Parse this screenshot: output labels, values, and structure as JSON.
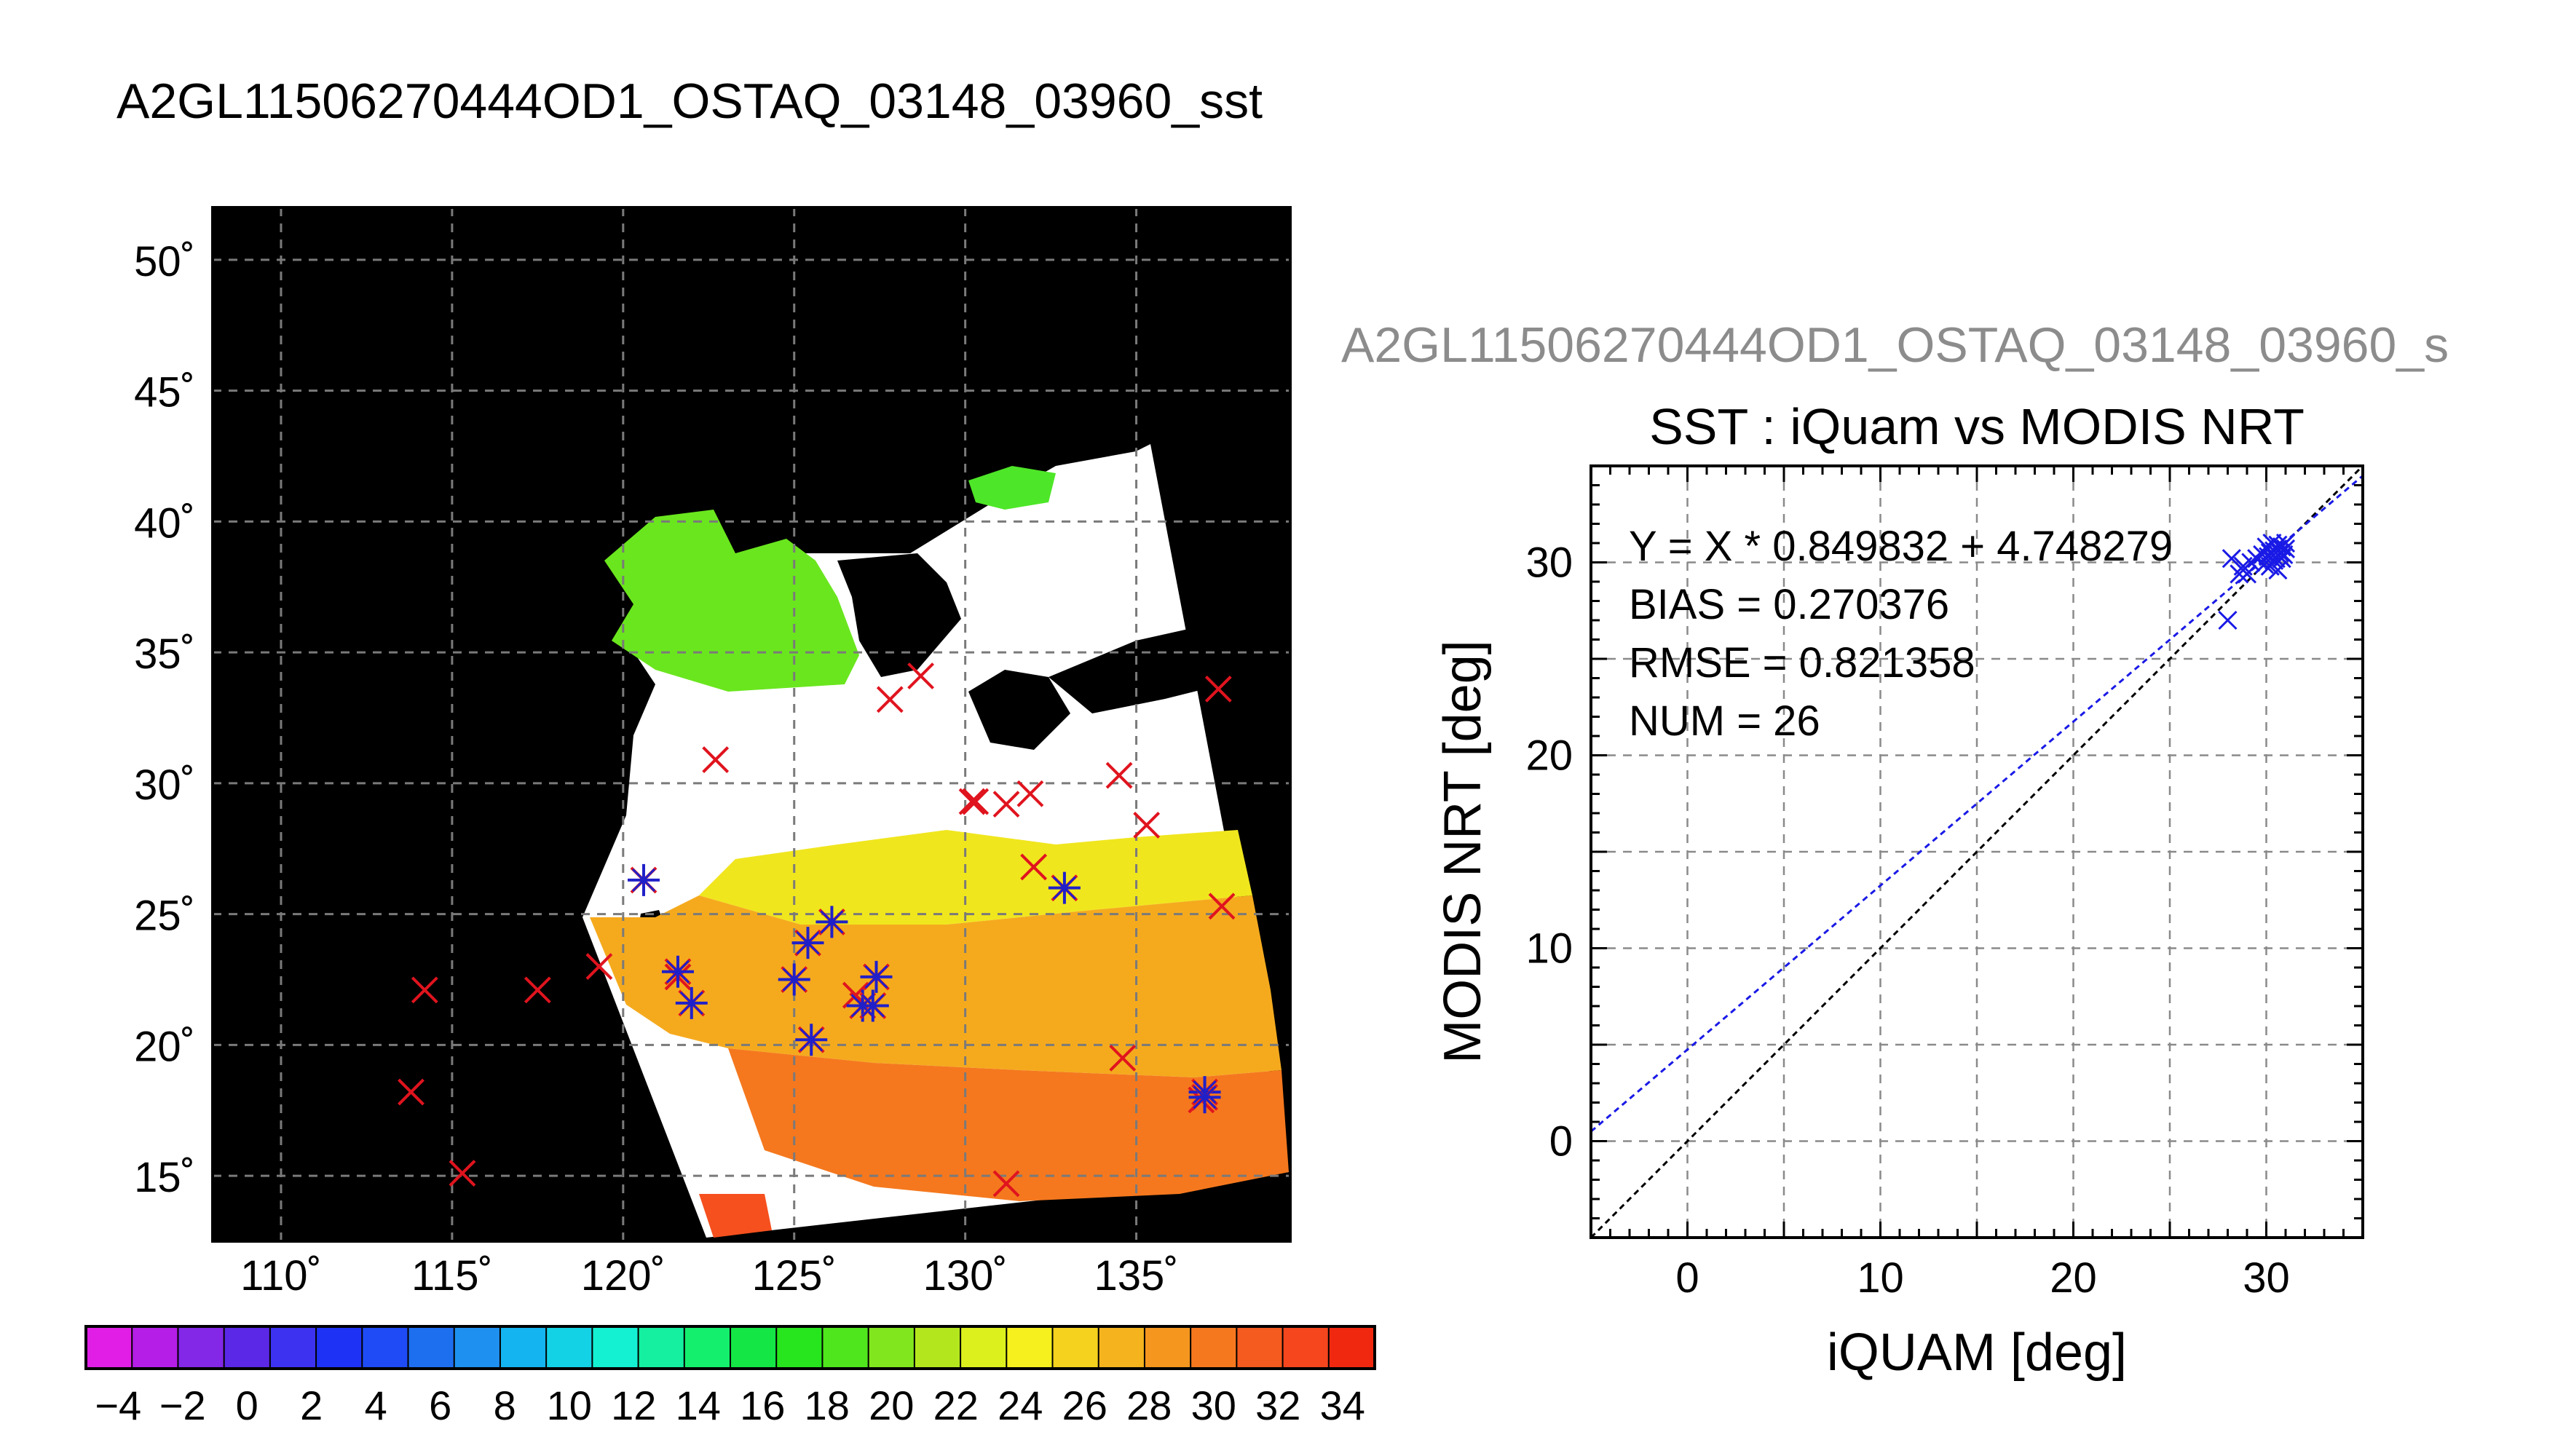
{
  "page": {
    "title": "A2GL11506270444OD1_OSTAQ_03148_03960_sst"
  },
  "map": {
    "lat_ticks": [
      "50˚",
      "45˚",
      "40˚",
      "35˚",
      "30˚",
      "25˚",
      "20˚",
      "15˚"
    ],
    "lon_ticks": [
      "110˚",
      "115˚",
      "120˚",
      "125˚",
      "130˚",
      "135˚"
    ],
    "lon_range": [
      108,
      139.5
    ],
    "lat_range": [
      12.5,
      52
    ],
    "colors": {
      "background": "#000000",
      "cloud": "#ffffff",
      "marker_iquam": "#e0141e",
      "marker_matched": "#2020c8"
    },
    "iquam_points": [
      [
        114.2,
        22.1
      ],
      [
        117.5,
        22.1
      ],
      [
        113.8,
        18.2
      ],
      [
        115.3,
        15.1
      ],
      [
        119.3,
        23.0
      ],
      [
        122.7,
        30.9
      ],
      [
        127.8,
        33.2
      ],
      [
        128.7,
        34.1
      ],
      [
        130.2,
        29.3
      ],
      [
        130.3,
        29.3
      ],
      [
        131.2,
        29.2
      ],
      [
        131.9,
        29.6
      ],
      [
        132.0,
        26.8
      ],
      [
        134.5,
        30.3
      ],
      [
        135.3,
        28.4
      ],
      [
        137.4,
        33.6
      ],
      [
        137.5,
        25.3
      ],
      [
        134.6,
        19.5
      ],
      [
        131.2,
        14.7
      ],
      [
        126.8,
        21.9
      ],
      [
        121.6,
        22.6
      ],
      [
        136.9,
        17.9
      ]
    ],
    "matched_points": [
      [
        120.6,
        26.3
      ],
      [
        121.6,
        22.8
      ],
      [
        122.0,
        21.6
      ],
      [
        125.0,
        22.5
      ],
      [
        125.4,
        23.9
      ],
      [
        125.5,
        20.2
      ],
      [
        126.1,
        24.7
      ],
      [
        127.0,
        21.5
      ],
      [
        127.3,
        21.5
      ],
      [
        127.4,
        22.6
      ],
      [
        132.9,
        26.0
      ],
      [
        137.0,
        18.2
      ],
      [
        137.0,
        18.0
      ]
    ]
  },
  "colorbar": {
    "tick_labels": [
      "−4",
      "−2",
      "0",
      "2",
      "4",
      "6",
      "8",
      "10",
      "12",
      "14",
      "16",
      "18",
      "20",
      "22",
      "24",
      "26",
      "28",
      "30",
      "32",
      "34"
    ],
    "range": [
      -5,
      35
    ],
    "colors": [
      "#e01ee6",
      "#b41ee6",
      "#8228e6",
      "#5a28e6",
      "#3c32f0",
      "#1e32f5",
      "#1e4bf5",
      "#1e6ef0",
      "#1e91f0",
      "#14b4f0",
      "#14d2e6",
      "#14f0d2",
      "#14f0a0",
      "#14f06e",
      "#14e646",
      "#28e61e",
      "#50e61e",
      "#82e61e",
      "#b4e61e",
      "#dcf01e",
      "#f5f01e",
      "#f5d21e",
      "#f5b41e",
      "#f5961e",
      "#f5781e",
      "#f55a1e",
      "#f5461e",
      "#f0280f"
    ]
  },
  "scatter": {
    "subtitle": "A2GL11506270444OD1_OSTAQ_03148_03960_s",
    "title": "SST : iQuam vs MODIS NRT",
    "xlabel": "iQUAM [deg]",
    "ylabel": "MODIS NRT [deg]",
    "stats": {
      "fit": "Y = X * 0.849832 + 4.748279",
      "bias": "BIAS = 0.270376",
      "rmse": "RMSE = 0.821358",
      "num": "NUM = 26"
    },
    "x_ticks": [
      "0",
      "10",
      "20",
      "30"
    ],
    "y_ticks": [
      "0",
      "10",
      "20",
      "30"
    ]
  },
  "chart_data": {
    "type": "scatter",
    "title": "SST : iQuam vs MODIS NRT",
    "xlabel": "iQUAM [deg]",
    "ylabel": "MODIS NRT [deg]",
    "xlim": [
      -5,
      35
    ],
    "ylim": [
      -5,
      35
    ],
    "grid": true,
    "fit": {
      "slope": 0.849832,
      "intercept": 4.748279,
      "color": "#1a1ae6"
    },
    "identity_line": {
      "color": "#000000"
    },
    "marker_color": "#1a1ae6",
    "points": [
      [
        28.0,
        27.0
      ],
      [
        28.2,
        30.2
      ],
      [
        28.6,
        29.4
      ],
      [
        28.8,
        29.8
      ],
      [
        29.0,
        29.4
      ],
      [
        29.2,
        30.0
      ],
      [
        29.5,
        30.2
      ],
      [
        29.8,
        30.4
      ],
      [
        30.0,
        30.8
      ],
      [
        30.1,
        30.3
      ],
      [
        30.2,
        29.8
      ],
      [
        30.3,
        31.0
      ],
      [
        30.4,
        30.6
      ],
      [
        30.5,
        30.2
      ],
      [
        30.6,
        30.9
      ],
      [
        30.6,
        29.6
      ],
      [
        30.7,
        30.5
      ],
      [
        30.8,
        30.8
      ],
      [
        30.9,
        30.4
      ],
      [
        31.0,
        30.7
      ],
      [
        31.0,
        31.0
      ],
      [
        30.4,
        30.1
      ],
      [
        30.8,
        30.2
      ],
      [
        30.2,
        30.5
      ],
      [
        29.9,
        29.9
      ],
      [
        30.5,
        30.5
      ]
    ]
  }
}
